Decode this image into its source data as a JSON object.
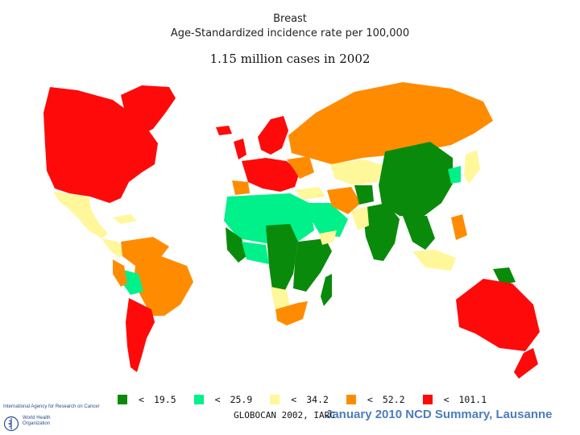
{
  "title": {
    "line1": "Breast",
    "line2": "Age-Standardized incidence rate per 100,000"
  },
  "subtitle": "1.15 million cases in 2002",
  "legend": [
    {
      "symbol": "<",
      "value": "19.5",
      "color": "#0a8a0a"
    },
    {
      "symbol": "<",
      "value": "25.9",
      "color": "#00f08a"
    },
    {
      "symbol": "<",
      "value": "34.2",
      "color": "#fff79a"
    },
    {
      "symbol": "<",
      "value": "52.2",
      "color": "#ff8c00"
    },
    {
      "symbol": "<",
      "value": "101.1",
      "color": "#ff0a0a"
    }
  ],
  "source": "GLOBOCAN 2002, IARC",
  "bottom_banner": "January 2010 NCD Summary, Lausanne",
  "logos": {
    "iarc": "International Agency for Research on Cancer",
    "who": "World Health Organization",
    "who_icon": "who-emblem-icon"
  }
}
